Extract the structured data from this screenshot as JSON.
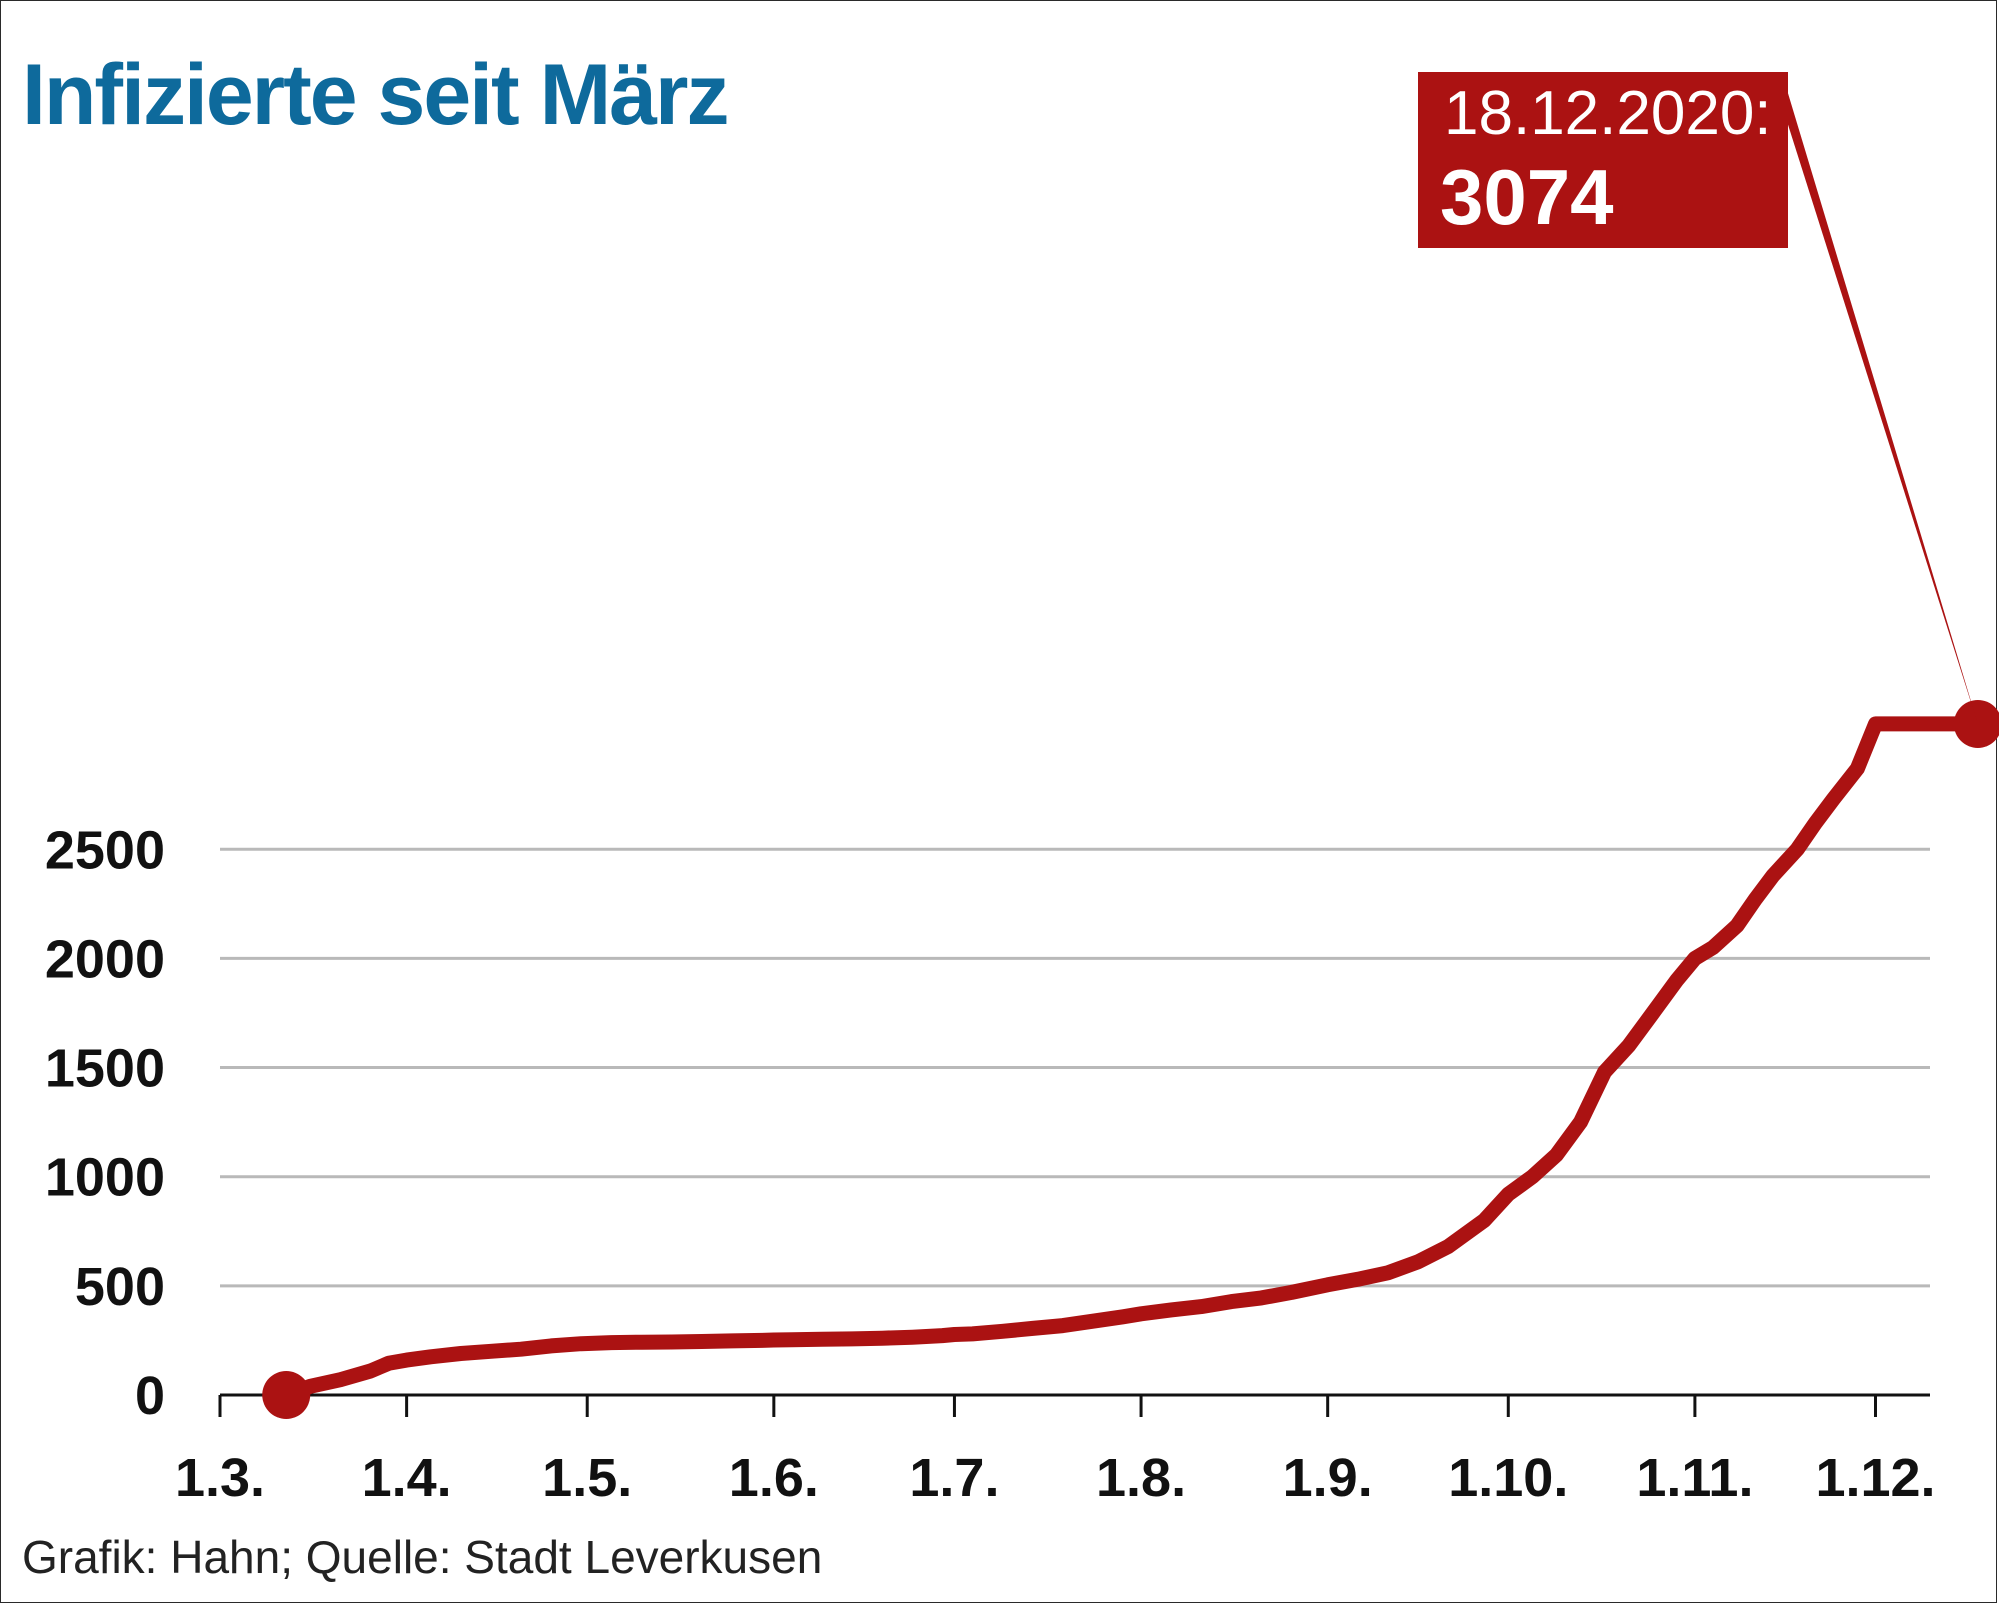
{
  "chart_data": {
    "type": "line",
    "title": "Infizierte seit März",
    "source": "Grafik: Hahn; Quelle: Stadt Leverkusen",
    "xlabel": "",
    "ylabel": "",
    "ylim": [
      0,
      3074
    ],
    "yticks": [
      0,
      500,
      1000,
      1500,
      2000,
      2500
    ],
    "grid": true,
    "x_tick_labels": [
      "1.3.",
      "1.4.",
      "1.5.",
      "1.6.",
      "1.7.",
      "1.8.",
      "1.9.",
      "1.10.",
      "1.11.",
      "1.12."
    ],
    "x_tick_days": [
      0,
      31,
      61,
      92,
      122,
      153,
      184,
      214,
      245,
      275
    ],
    "x_max_day": 292,
    "line_color": "#ab1212",
    "series": [
      {
        "name": "Infizierte",
        "x_days": [
          11,
          15,
          20,
          25,
          28,
          31,
          35,
          40,
          45,
          50,
          55,
          60,
          65,
          70,
          75,
          80,
          85,
          90,
          92,
          95,
          100,
          105,
          110,
          115,
          120,
          122,
          125,
          130,
          135,
          140,
          145,
          150,
          153,
          158,
          163,
          168,
          173,
          178,
          184,
          189,
          194,
          199,
          204,
          210,
          214,
          218,
          222,
          226,
          230,
          234,
          238,
          242,
          245,
          248,
          252,
          255,
          258,
          262,
          265,
          268,
          272,
          275,
          278,
          282,
          286,
          289,
          292
        ],
        "values": [
          0,
          40,
          70,
          110,
          145,
          160,
          175,
          190,
          200,
          210,
          225,
          235,
          240,
          242,
          243,
          245,
          248,
          250,
          252,
          253,
          255,
          257,
          260,
          265,
          272,
          277,
          280,
          292,
          305,
          318,
          338,
          358,
          372,
          390,
          405,
          428,
          445,
          470,
          505,
          530,
          560,
          610,
          680,
          800,
          920,
          1000,
          1100,
          1250,
          1480,
          1600,
          1750,
          1900,
          2000,
          2050,
          2150,
          2270,
          2380,
          2500,
          2620,
          2730,
          2870,
          3074,
          3074,
          3074,
          3074,
          3074,
          3074
        ]
      }
    ],
    "callout": {
      "date": "18.12.2020:",
      "value": "3074"
    }
  }
}
